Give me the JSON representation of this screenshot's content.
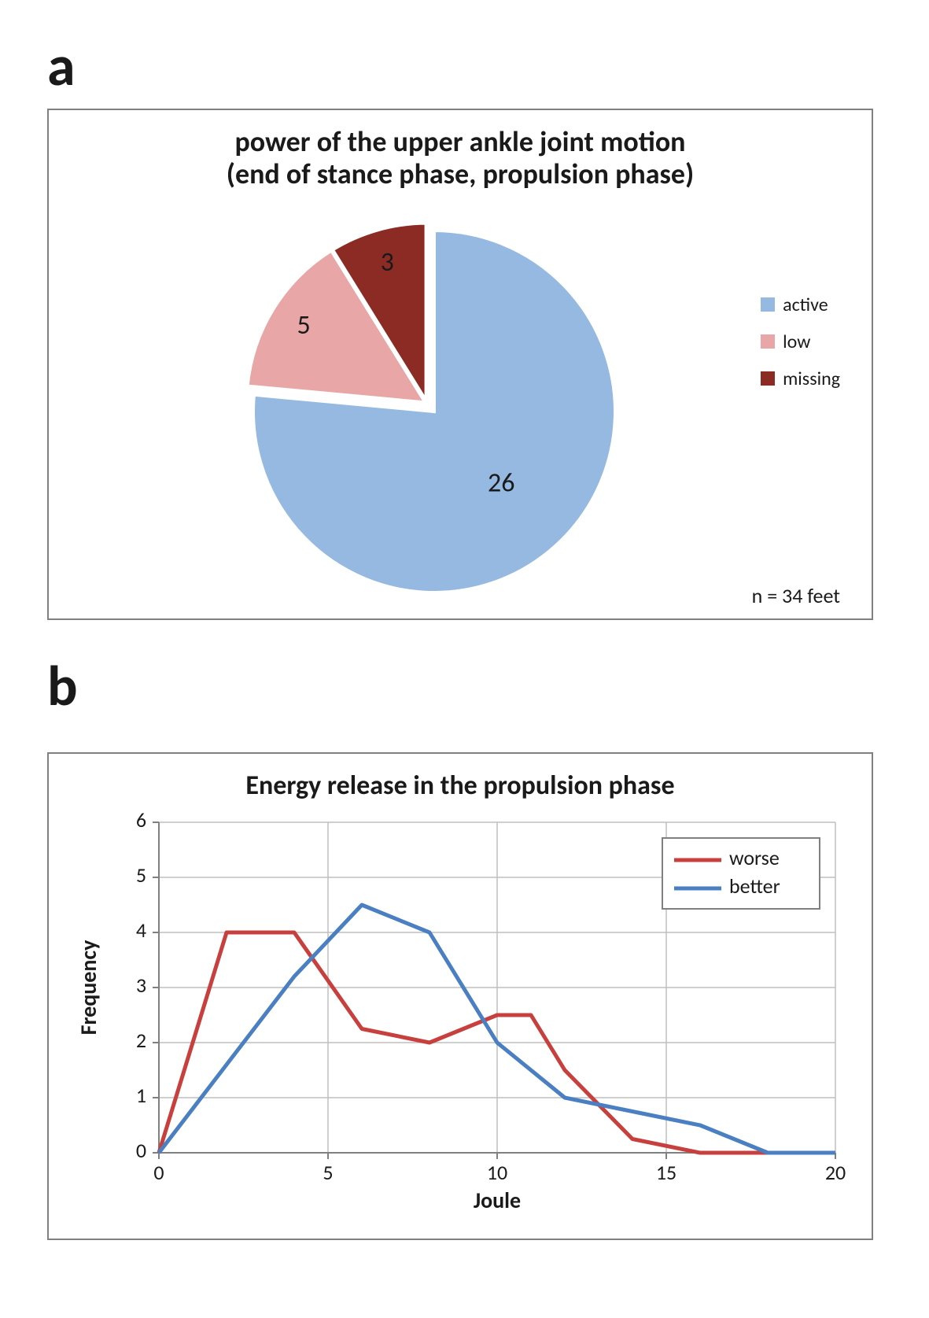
{
  "panel_a_label": "a",
  "panel_b_label": "b",
  "pie": {
    "type": "pie",
    "title_line1": "power of the upper ankle joint motion",
    "title_line2": "(end of stance phase, propulsion phase)",
    "title_fontsize": 36,
    "slices": [
      {
        "label": "active",
        "value": 26,
        "color": "#95b9e1"
      },
      {
        "label": "low",
        "value": 5,
        "color": "#e8a7a6"
      },
      {
        "label": "missing",
        "value": 3,
        "color": "#8b2b24"
      }
    ],
    "exploded_group": [
      "low",
      "missing"
    ],
    "explode_offset": 14,
    "data_label_fontsize": 34,
    "data_label_color": "#1a1a1a",
    "legend_fontsize": 24,
    "n_text": "n = 34 feet",
    "background_color": "#ffffff",
    "border_color": "#808080"
  },
  "line": {
    "type": "line",
    "title": "Energy release in the propulsion phase",
    "title_fontsize": 34,
    "xlabel": "Joule",
    "ylabel": "Frequency",
    "label_fontsize": 28,
    "tick_fontsize": 26,
    "xlim": [
      0,
      20
    ],
    "ylim": [
      0,
      6
    ],
    "xticks": [
      0,
      5,
      10,
      15,
      20
    ],
    "yticks": [
      0,
      1,
      2,
      3,
      4,
      5,
      6
    ],
    "grid_color": "#bfbfbf",
    "axis_color": "#808080",
    "line_width": 5,
    "series": [
      {
        "name": "worse",
        "color": "#c8403e",
        "points": [
          [
            0,
            0
          ],
          [
            2,
            4
          ],
          [
            4,
            4
          ],
          [
            6,
            2.25
          ],
          [
            8,
            2
          ],
          [
            10,
            2.5
          ],
          [
            11,
            2.5
          ],
          [
            12,
            1.5
          ],
          [
            14,
            0.25
          ],
          [
            16,
            0
          ],
          [
            18,
            0
          ],
          [
            20,
            0
          ]
        ]
      },
      {
        "name": "better",
        "color": "#4a7fc1",
        "points": [
          [
            0,
            0
          ],
          [
            2,
            1.6
          ],
          [
            4,
            3.2
          ],
          [
            6,
            4.5
          ],
          [
            8,
            4
          ],
          [
            10,
            2
          ],
          [
            12,
            1
          ],
          [
            14,
            0.75
          ],
          [
            16,
            0.5
          ],
          [
            18,
            0
          ],
          [
            20,
            0
          ]
        ]
      }
    ],
    "legend": {
      "position": "top-right-inside-plot",
      "border_color": "#808080",
      "background": "#ffffff"
    },
    "background_color": "#ffffff",
    "border_color": "#808080"
  }
}
